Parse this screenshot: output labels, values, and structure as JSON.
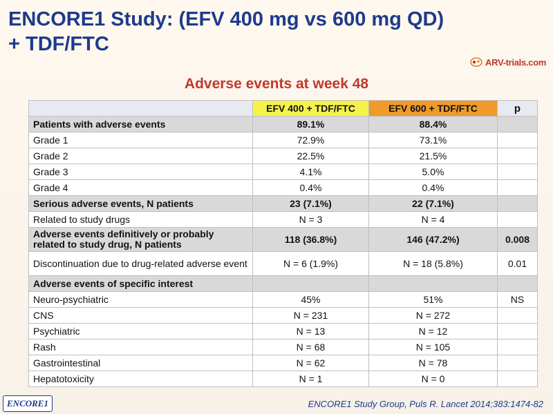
{
  "title_line1": "ENCORE1 Study: (EFV 400 mg vs 600 mg QD)",
  "title_line2": "+ TDF/FTC",
  "brand": {
    "name": "ARV-trials.com"
  },
  "subtitle": "Adverse events at week 48",
  "table": {
    "headers": [
      "",
      "EFV 400 + TDF/FTC",
      "EFV 600 + TDF/FTC",
      "p"
    ],
    "rows": [
      [
        "Patients with adverse events",
        "89.1%",
        "88.4%",
        ""
      ],
      [
        "Grade 1",
        "72.9%",
        "73.1%",
        ""
      ],
      [
        "Grade 2",
        "22.5%",
        "21.5%",
        ""
      ],
      [
        "Grade 3",
        "4.1%",
        "5.0%",
        ""
      ],
      [
        "Grade 4",
        "0.4%",
        "0.4%",
        ""
      ],
      [
        "Serious adverse events, N patients",
        "23 (7.1%)",
        "22 (7.1%)",
        ""
      ],
      [
        "Related to study drugs",
        "N = 3",
        "N = 4",
        ""
      ],
      [
        "Adverse events definitively or probably related to study drug, N patients",
        "118 (36.8%)",
        "146 (47.2%)",
        "0.008"
      ],
      [
        "Discontinuation due to drug-related adverse event",
        "N = 6 (1.9%)",
        "N = 18 (5.8%)",
        "0.01"
      ],
      [
        "Adverse events of specific interest",
        "",
        "",
        ""
      ],
      [
        "Neuro-psychiatric",
        "45%",
        "51%",
        "NS"
      ],
      [
        "CNS",
        "N = 231",
        "N = 272",
        ""
      ],
      [
        "Psychiatric",
        "N = 13",
        "N = 12",
        ""
      ],
      [
        "Rash",
        "N = 68",
        "N = 105",
        ""
      ],
      [
        "Gastrointestinal",
        "N = 62",
        "N = 78",
        ""
      ],
      [
        "Hepatotoxicity",
        "N = 1",
        "N = 0",
        ""
      ]
    ]
  },
  "footer": {
    "badge": "ENCORE1",
    "citation": "ENCORE1 Study Group, Puls R. Lancet 2014;383:1474-82"
  },
  "colors": {
    "title": "#1f3a8c",
    "subtitle": "#c0392b",
    "efv400_header": "#f5f24a",
    "efv600_header": "#ef9a2b",
    "shaded_row": "#d9d9d9"
  }
}
